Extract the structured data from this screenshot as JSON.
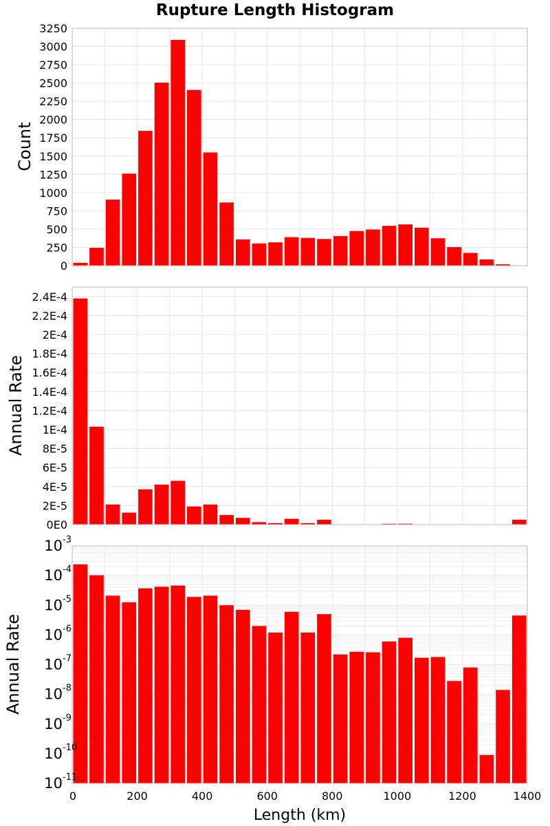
{
  "colors": {
    "bar": "#ff0000",
    "background": "#ffffff",
    "grid": "#e6e6e6"
  },
  "chart_data": [
    {
      "type": "bar",
      "title": "Rupture Length Histogram",
      "xlabel": "",
      "ylabel": "Count",
      "bin_width": 50,
      "bin_starts": [
        0,
        50,
        100,
        150,
        200,
        250,
        300,
        350,
        400,
        450,
        500,
        550,
        600,
        650,
        700,
        750,
        800,
        850,
        900,
        950,
        1000,
        1050,
        1100,
        1150,
        1200,
        1250,
        1300,
        1350
      ],
      "values": [
        40,
        245,
        905,
        1260,
        1845,
        2505,
        3090,
        2405,
        1550,
        865,
        360,
        305,
        320,
        390,
        380,
        365,
        405,
        475,
        495,
        545,
        565,
        520,
        375,
        255,
        175,
        85,
        20,
        5
      ],
      "xlim": [
        0,
        1400
      ],
      "ylim": [
        0,
        3250
      ],
      "yticks": [
        "0",
        "250",
        "500",
        "750",
        "1000",
        "1250",
        "1500",
        "1750",
        "2000",
        "2250",
        "2500",
        "2750",
        "3000",
        "3250"
      ],
      "grid": true
    },
    {
      "type": "bar",
      "title": "",
      "xlabel": "",
      "ylabel": "Annual Rate",
      "bin_width": 50,
      "bin_starts": [
        0,
        50,
        100,
        150,
        200,
        250,
        300,
        350,
        400,
        450,
        500,
        550,
        600,
        650,
        700,
        750,
        800,
        850,
        900,
        950,
        1000,
        1050,
        1100,
        1150,
        1200,
        1250,
        1300,
        1350
      ],
      "values": [
        0.000238,
        0.000103,
        2.1e-05,
        1.25e-05,
        3.7e-05,
        4.2e-05,
        4.6e-05,
        1.9e-05,
        2.1e-05,
        1e-05,
        7e-06,
        2.5e-06,
        1.5e-06,
        6e-06,
        1.5e-06,
        5e-06,
        3e-07,
        3.5e-07,
        3.5e-07,
        8e-07,
        9e-07,
        2.5e-07,
        2.5e-07,
        4e-08,
        1e-07,
        5e-11,
        2e-08,
        5e-06
      ],
      "xlim": [
        0,
        1400
      ],
      "ylim": [
        0,
        0.00025
      ],
      "yticks": [
        "0E0",
        "2E-5",
        "4E-5",
        "6E-5",
        "8E-5",
        "1E-4",
        "1.2E-4",
        "1.4E-4",
        "1.6E-4",
        "1.8E-4",
        "2E-4",
        "2.2E-4",
        "2.4E-4"
      ],
      "grid": true
    },
    {
      "type": "bar",
      "title": "",
      "xlabel": "Length (km)",
      "ylabel": "Annual Rate",
      "yscale": "log",
      "bin_width": 50,
      "bin_starts": [
        0,
        50,
        100,
        150,
        200,
        250,
        300,
        350,
        400,
        450,
        500,
        550,
        600,
        650,
        700,
        750,
        800,
        850,
        900,
        950,
        1000,
        1050,
        1100,
        1150,
        1200,
        1250,
        1300,
        1350
      ],
      "values": [
        0.000238,
        0.000103,
        2.1e-05,
        1.25e-05,
        3.7e-05,
        4.2e-05,
        4.6e-05,
        1.9e-05,
        2.1e-05,
        1e-05,
        7e-06,
        2e-06,
        1.2e-06,
        6e-06,
        1.2e-06,
        5e-06,
        2.2e-07,
        2.7e-07,
        2.6e-07,
        6e-07,
        8e-07,
        1.7e-07,
        1.8e-07,
        2.8e-08,
        8e-08,
        9e-11,
        1.4e-08,
        4.5e-06
      ],
      "xlim": [
        0,
        1400
      ],
      "ylim": [
        1e-11,
        0.001
      ],
      "ytick_exponents": [
        "-11",
        "-10",
        "-9",
        "-8",
        "-7",
        "-6",
        "-5",
        "-4",
        "-3"
      ],
      "ytick_base": "10",
      "xticks": [
        "0",
        "200",
        "400",
        "600",
        "800",
        "1000",
        "1200",
        "1400"
      ],
      "grid": true
    }
  ]
}
